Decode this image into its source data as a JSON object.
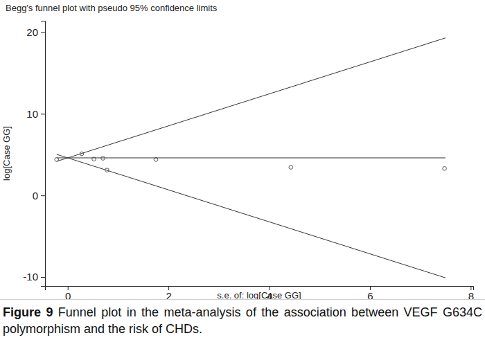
{
  "chart_data": {
    "type": "scatter",
    "title": "Begg's funnel plot with pseudo 95% confidence limits",
    "x_label": "s.e. of: log[Case GG]",
    "y_label": "log[Case GG]",
    "figure_label": "Figure 9",
    "caption": "Funnel plot in the meta-analysis of the association between VEGF G634C polymorphism and the risk of CHDs.",
    "xlim": [
      -0.45,
      8.05
    ],
    "ylim": [
      -11.1,
      21.4
    ],
    "xticks": [
      0,
      2,
      4,
      6,
      8
    ],
    "yticks": [
      -10,
      0,
      10,
      20
    ],
    "grid": false,
    "series": [
      {
        "type": "scatter",
        "marker": "hollow-circle",
        "color": "#555555",
        "x": [
          -0.22,
          0.28,
          0.52,
          0.7,
          0.78,
          1.75,
          4.43,
          7.48
        ],
        "values": [
          4.4,
          5.1,
          4.45,
          4.55,
          3.1,
          4.4,
          3.45,
          3.3
        ]
      },
      {
        "type": "line",
        "line_style": "solid",
        "color": "#333333",
        "x": [
          -0.22,
          7.5
        ],
        "values": [
          4.17,
          19.3
        ]
      },
      {
        "type": "line",
        "line_style": "solid",
        "color": "#333333",
        "x": [
          -0.22,
          7.5
        ],
        "values": [
          5.03,
          -10.1
        ]
      },
      {
        "type": "line",
        "line_style": "solid",
        "color": "#333333",
        "x": [
          -0.22,
          7.5
        ],
        "values": [
          4.6,
          4.6
        ]
      }
    ]
  }
}
